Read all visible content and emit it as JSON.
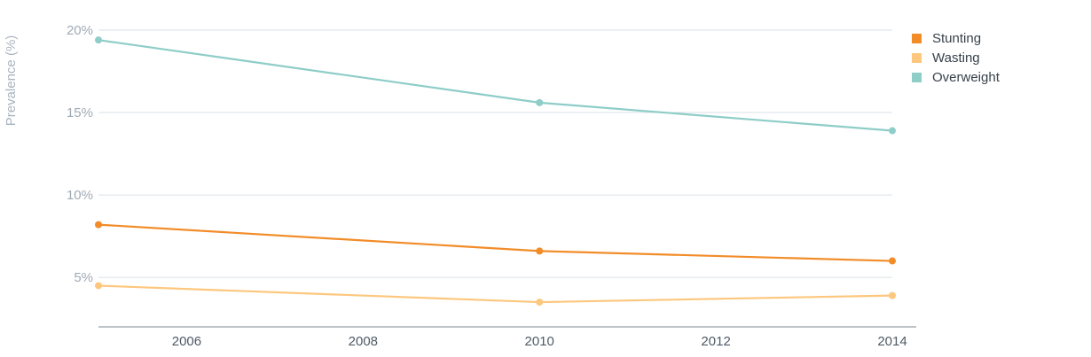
{
  "chart_data": {
    "type": "line",
    "ylabel": "Prevalence (%)",
    "xlim": [
      2005,
      2014.2
    ],
    "ylim": [
      2,
      20
    ],
    "yticks": [
      5,
      10,
      15,
      20
    ],
    "ytick_labels": [
      "5%",
      "10%",
      "15%",
      "20%"
    ],
    "xticks": [
      2006,
      2008,
      2010,
      2012,
      2014
    ],
    "xtick_labels": [
      "2006",
      "2008",
      "2010",
      "2012",
      "2014"
    ],
    "grid": true,
    "legend_position": "top-right",
    "series": [
      {
        "name": "Stunting",
        "color": "#f28c28",
        "x": [
          2005,
          2010,
          2014
        ],
        "y": [
          8.2,
          6.6,
          6.0
        ]
      },
      {
        "name": "Wasting",
        "color": "#fdc77d",
        "x": [
          2005,
          2010,
          2014
        ],
        "y": [
          4.5,
          3.5,
          3.9
        ]
      },
      {
        "name": "Overweight",
        "color": "#8ecdc8",
        "x": [
          2005,
          2010,
          2014
        ],
        "y": [
          19.4,
          15.6,
          13.9
        ]
      }
    ]
  }
}
